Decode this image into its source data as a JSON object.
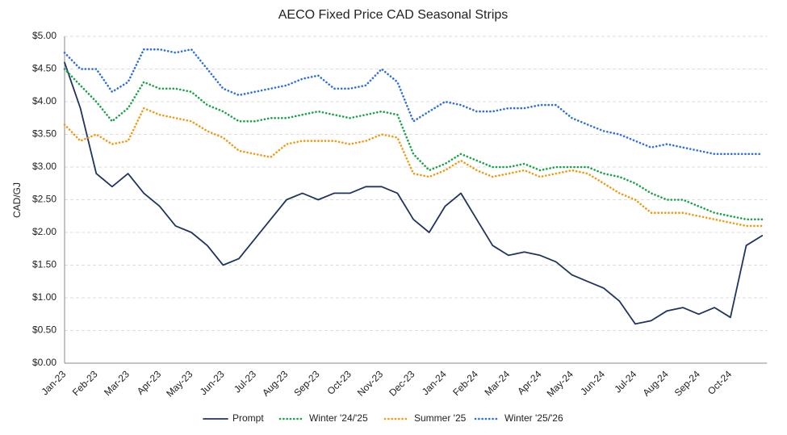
{
  "chart_data": {
    "type": "line",
    "title": "AECO Fixed Price CAD Seasonal Strips",
    "y_label": "CAD/GJ",
    "categories": [
      "Jan-23",
      null,
      "Feb-23",
      null,
      "Mar-23",
      null,
      "Apr-23",
      null,
      "May-23",
      null,
      "Jun-23",
      null,
      "Jul-23",
      null,
      "Aug-23",
      null,
      "Sep-23",
      null,
      "Oct-23",
      null,
      "Nov-23",
      null,
      "Dec-23",
      null,
      "Jan-24",
      null,
      "Feb-24",
      null,
      "Mar-24",
      null,
      "Apr-24",
      null,
      "May-24",
      null,
      "Jun-24",
      null,
      "Jul-24",
      null,
      "Aug-24",
      null,
      "Sep-24",
      null,
      "Oct-24",
      null,
      null
    ],
    "ylim": [
      0,
      5
    ],
    "yticks": [
      {
        "value": 0,
        "label": "$0.00"
      },
      {
        "value": 0.5,
        "label": "$0.50"
      },
      {
        "value": 1,
        "label": "$1.00"
      },
      {
        "value": 1.5,
        "label": "$1.50"
      },
      {
        "value": 2,
        "label": "$2.00"
      },
      {
        "value": 2.5,
        "label": "$2.50"
      },
      {
        "value": 3,
        "label": "$3.00"
      },
      {
        "value": 3.5,
        "label": "$3.50"
      },
      {
        "value": 4,
        "label": "$4.00"
      },
      {
        "value": 4.5,
        "label": "$4.50"
      },
      {
        "value": 5,
        "label": "$5.00"
      }
    ],
    "grid": true,
    "legend": "bottom",
    "series": [
      {
        "name": "Prompt",
        "color": "#1f3560",
        "style": "solid",
        "values": [
          4.6,
          3.9,
          2.9,
          2.7,
          2.9,
          2.6,
          2.4,
          2.1,
          2.0,
          1.8,
          1.5,
          1.6,
          1.9,
          2.2,
          2.5,
          2.6,
          2.5,
          2.6,
          2.6,
          2.7,
          2.7,
          2.6,
          2.2,
          2.0,
          2.4,
          2.6,
          2.2,
          1.8,
          1.65,
          1.7,
          1.65,
          1.55,
          1.35,
          1.25,
          1.15,
          0.95,
          0.6,
          0.65,
          0.8,
          0.85,
          0.75,
          0.85,
          0.7,
          1.8,
          1.95
        ]
      },
      {
        "name": "Winter '24/'25",
        "color": "#1aa34a",
        "style": "dotted",
        "values": [
          4.5,
          4.25,
          4.0,
          3.7,
          3.9,
          4.3,
          4.2,
          4.2,
          4.15,
          3.95,
          3.85,
          3.7,
          3.7,
          3.75,
          3.75,
          3.8,
          3.85,
          3.8,
          3.75,
          3.8,
          3.85,
          3.8,
          3.2,
          2.95,
          3.05,
          3.2,
          3.1,
          3.0,
          3.0,
          3.05,
          2.95,
          3.0,
          3.0,
          3.0,
          2.9,
          2.85,
          2.75,
          2.6,
          2.5,
          2.5,
          2.4,
          2.3,
          2.25,
          2.2,
          2.2
        ]
      },
      {
        "name": "Summer '25",
        "color": "#f29a12",
        "style": "dotted",
        "values": [
          3.65,
          3.4,
          3.5,
          3.35,
          3.4,
          3.9,
          3.8,
          3.75,
          3.7,
          3.55,
          3.45,
          3.25,
          3.2,
          3.15,
          3.35,
          3.4,
          3.4,
          3.4,
          3.35,
          3.4,
          3.5,
          3.45,
          2.9,
          2.85,
          2.95,
          3.1,
          2.95,
          2.85,
          2.9,
          2.95,
          2.85,
          2.9,
          2.95,
          2.9,
          2.75,
          2.6,
          2.5,
          2.3,
          2.3,
          2.3,
          2.25,
          2.2,
          2.15,
          2.1,
          2.1
        ]
      },
      {
        "name": "Winter '25/'26",
        "color": "#2e6fe0",
        "style": "dotted",
        "values": [
          4.75,
          4.5,
          4.5,
          4.15,
          4.3,
          4.8,
          4.8,
          4.75,
          4.8,
          4.5,
          4.2,
          4.1,
          4.15,
          4.2,
          4.25,
          4.35,
          4.4,
          4.2,
          4.2,
          4.25,
          4.5,
          4.3,
          3.7,
          3.85,
          4.0,
          3.95,
          3.85,
          3.85,
          3.9,
          3.9,
          3.95,
          3.95,
          3.75,
          3.65,
          3.55,
          3.5,
          3.4,
          3.3,
          3.35,
          3.3,
          3.25,
          3.2,
          3.2,
          3.2,
          3.2
        ]
      }
    ]
  }
}
